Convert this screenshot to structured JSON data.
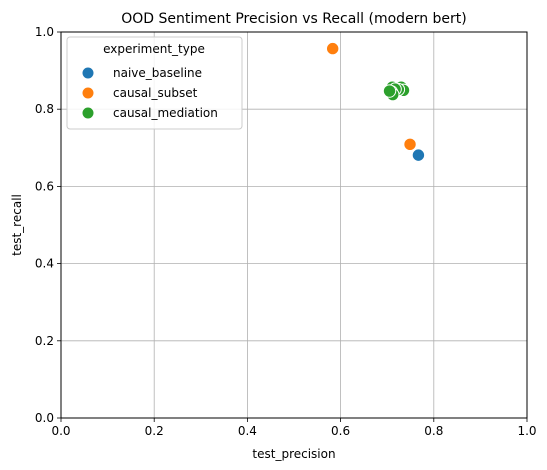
{
  "chart_data": {
    "type": "scatter",
    "title": "OOD Sentiment Precision vs Recall (modern bert)",
    "xlabel": "test_precision",
    "ylabel": "test_recall",
    "xlim": [
      0.0,
      1.0
    ],
    "ylim": [
      0.0,
      1.0
    ],
    "xticks": [
      "0.0",
      "0.2",
      "0.4",
      "0.6",
      "0.8",
      "1.0"
    ],
    "yticks": [
      "0.0",
      "0.2",
      "0.4",
      "0.6",
      "0.8",
      "1.0"
    ],
    "grid": true,
    "legend": {
      "title": "experiment_type",
      "placement": "top-left"
    },
    "series": [
      {
        "name": "naive_baseline",
        "color": "#1f77b4",
        "points": [
          [
            0.767,
            0.681
          ]
        ]
      },
      {
        "name": "causal_subset",
        "color": "#ff7f0e",
        "points": [
          [
            0.583,
            0.957
          ],
          [
            0.749,
            0.709
          ]
        ]
      },
      {
        "name": "causal_mediation",
        "color": "#2ca02c",
        "points": [
          [
            0.711,
            0.857
          ],
          [
            0.73,
            0.857
          ],
          [
            0.735,
            0.849
          ],
          [
            0.724,
            0.851
          ],
          [
            0.717,
            0.852
          ],
          [
            0.709,
            0.845
          ],
          [
            0.712,
            0.838
          ],
          [
            0.705,
            0.847
          ]
        ]
      }
    ]
  }
}
